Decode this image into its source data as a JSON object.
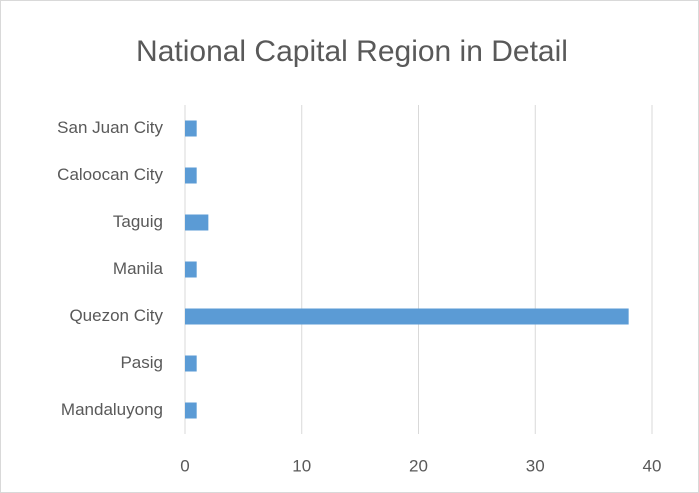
{
  "chart_data": {
    "type": "barh",
    "title": "National Capital Region in Detail",
    "categories": [
      "Mandaluyong",
      "Pasig",
      "Quezon City",
      "Manila",
      "Taguig",
      "Caloocan City",
      "San Juan City"
    ],
    "values": [
      1,
      1,
      38,
      1,
      2,
      1,
      1
    ],
    "color": "#5b9bd5",
    "xlim": [
      0,
      40
    ],
    "xticks": [
      0,
      10,
      20,
      30,
      40
    ],
    "grid": true
  }
}
